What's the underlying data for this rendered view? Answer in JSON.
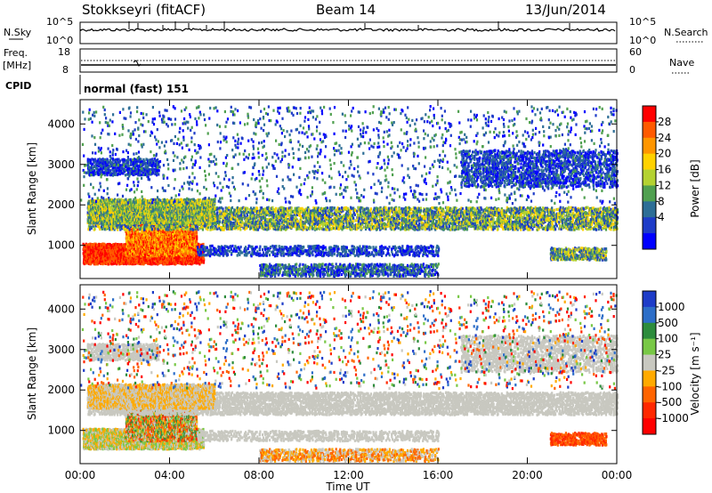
{
  "header": {
    "station": "Stokkseyri (fitACF)",
    "beam": "Beam 14",
    "date": "13/Jun/2014"
  },
  "left_labels": {
    "nsky": "N.Sky",
    "freq": "Freq.",
    "mhz": "[MHz]",
    "cpid": "CPID"
  },
  "right_labels": {
    "nsearch": "N.Search",
    "nave": "Nave"
  },
  "cpid_text": "normal (fast) 151",
  "chart_data": [
    {
      "type": "line",
      "title": "N.Sky / N.Search",
      "yticks_left": [
        "10^5",
        "10^0"
      ],
      "yticks_right": [
        "10^5",
        "10^0"
      ],
      "x_range": [
        "00:00",
        "24:00"
      ],
      "note": "noise level near 10^4 with sporadic spikes"
    },
    {
      "type": "line",
      "title": "Freq. / Nave",
      "yticks_left": [
        "18",
        "8"
      ],
      "yticks_right": [
        "60",
        "0"
      ],
      "freq_mhz": 10,
      "nave": 15
    },
    {
      "type": "heatmap",
      "ylabel": "Slant Range [km]",
      "yticks": [
        "1000",
        "2000",
        "3000",
        "4000"
      ],
      "ylim": [
        180,
        4600
      ],
      "colorbar_label": "Power [dB]",
      "colorbar_ticks": [
        "28",
        "24",
        "20",
        "16",
        "12",
        "8",
        "4"
      ],
      "colorbar_colors": [
        "#ff0000",
        "#ff5a00",
        "#ff9600",
        "#ffd200",
        "#b4d232",
        "#50a050",
        "#2d6e96",
        "#1e3cc8",
        "#0000ff"
      ]
    },
    {
      "type": "heatmap",
      "ylabel": "Slant Range [km]",
      "yticks": [
        "1000",
        "2000",
        "3000",
        "4000"
      ],
      "ylim": [
        180,
        4600
      ],
      "colorbar_label": "Velocity [m s⁻¹]",
      "colorbar_ticks": [
        "1000",
        "500",
        "100",
        "25",
        "-25",
        "-100",
        "-500",
        "-1000"
      ],
      "colorbar_colors": [
        "#1e3cc8",
        "#2d6ec8",
        "#2d8c3c",
        "#78c846",
        "#c8c8c0",
        "#ffaa00",
        "#ff6400",
        "#ff2800",
        "#ff0000"
      ]
    }
  ],
  "xaxis": {
    "ticks": [
      "00:00",
      "04:00",
      "08:00",
      "12:00",
      "16:00",
      "20:00",
      "00:00"
    ],
    "label": "Time UT"
  }
}
